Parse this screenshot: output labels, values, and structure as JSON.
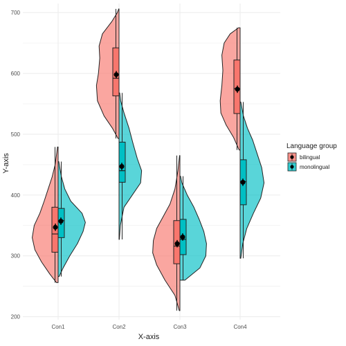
{
  "chart_data": {
    "type": "violin-box",
    "xlabel": "X-axis",
    "ylabel": "Y-axis",
    "ylim": [
      195,
      715
    ],
    "yticks": [
      200,
      300,
      400,
      500,
      600,
      700
    ],
    "categories": [
      "Con1",
      "Con2",
      "Con3",
      "Con4"
    ],
    "grid": true,
    "legend": {
      "title": "Language group",
      "placement": "right",
      "entries": [
        "bilingual",
        "monolingual"
      ]
    },
    "colors": {
      "bilingual": "#F8766D",
      "monolingual": "#00BFC4",
      "outline": "#222222",
      "grid": "#ebebeb"
    },
    "series": [
      {
        "name": "bilingual",
        "groups": [
          {
            "category": "Con1",
            "min": 256,
            "q1": 306,
            "median": 336,
            "q3": 380,
            "max": 479,
            "mean": 347,
            "se": 6,
            "density": [
              [
                256,
                0.05
              ],
              [
                270,
                0.25
              ],
              [
                290,
                0.5
              ],
              [
                310,
                0.7
              ],
              [
                330,
                0.78
              ],
              [
                350,
                0.72
              ],
              [
                370,
                0.55
              ],
              [
                390,
                0.42
              ],
              [
                410,
                0.3
              ],
              [
                430,
                0.18
              ],
              [
                450,
                0.09
              ],
              [
                470,
                0.04
              ],
              [
                479,
                0.02
              ]
            ]
          },
          {
            "category": "Con2",
            "min": 493,
            "q1": 563,
            "median": 592,
            "q3": 642,
            "max": 706,
            "mean": 598,
            "se": 6,
            "density": [
              [
                493,
                0.03
              ],
              [
                510,
                0.2
              ],
              [
                530,
                0.45
              ],
              [
                555,
                0.65
              ],
              [
                580,
                0.68
              ],
              [
                600,
                0.62
              ],
              [
                625,
                0.58
              ],
              [
                645,
                0.6
              ],
              [
                665,
                0.5
              ],
              [
                685,
                0.22
              ],
              [
                700,
                0.05
              ],
              [
                706,
                0.01
              ]
            ]
          },
          {
            "category": "Con3",
            "min": 210,
            "q1": 287,
            "median": 316,
            "q3": 358,
            "max": 465,
            "mean": 320,
            "se": 6,
            "density": [
              [
                210,
                0.02
              ],
              [
                235,
                0.15
              ],
              [
                260,
                0.45
              ],
              [
                285,
                0.7
              ],
              [
                305,
                0.82
              ],
              [
                325,
                0.8
              ],
              [
                345,
                0.7
              ],
              [
                365,
                0.5
              ],
              [
                385,
                0.3
              ],
              [
                410,
                0.15
              ],
              [
                440,
                0.06
              ],
              [
                465,
                0.01
              ]
            ]
          },
          {
            "category": "Con4",
            "min": 474,
            "q1": 534,
            "median": 575,
            "q3": 622,
            "max": 675,
            "mean": 574,
            "se": 6,
            "density": [
              [
                474,
                0.03
              ],
              [
                495,
                0.2
              ],
              [
                515,
                0.42
              ],
              [
                535,
                0.58
              ],
              [
                555,
                0.6
              ],
              [
                580,
                0.55
              ],
              [
                605,
                0.52
              ],
              [
                630,
                0.55
              ],
              [
                650,
                0.48
              ],
              [
                665,
                0.3
              ],
              [
                675,
                0.05
              ]
            ]
          }
        ]
      },
      {
        "name": "monolingual",
        "groups": [
          {
            "category": "Con1",
            "min": 266,
            "q1": 330,
            "median": 358,
            "q3": 378,
            "max": 455,
            "mean": 357,
            "se": 6,
            "density": [
              [
                266,
                0.03
              ],
              [
                280,
                0.15
              ],
              [
                300,
                0.35
              ],
              [
                320,
                0.58
              ],
              [
                340,
                0.75
              ],
              [
                355,
                0.82
              ],
              [
                370,
                0.72
              ],
              [
                390,
                0.38
              ],
              [
                410,
                0.2
              ],
              [
                430,
                0.1
              ],
              [
                445,
                0.05
              ],
              [
                455,
                0.02
              ]
            ]
          },
          {
            "category": "Con2",
            "min": 327,
            "q1": 421,
            "median": 440,
            "q3": 487,
            "max": 568,
            "mean": 447,
            "se": 6,
            "density": [
              [
                327,
                0.01
              ],
              [
                350,
                0.04
              ],
              [
                380,
                0.15
              ],
              [
                400,
                0.4
              ],
              [
                420,
                0.65
              ],
              [
                440,
                0.68
              ],
              [
                460,
                0.55
              ],
              [
                485,
                0.42
              ],
              [
                510,
                0.3
              ],
              [
                535,
                0.15
              ],
              [
                555,
                0.05
              ],
              [
                568,
                0.02
              ]
            ]
          },
          {
            "category": "Con3",
            "min": 260,
            "q1": 302,
            "median": 327,
            "q3": 360,
            "max": 431,
            "mean": 331,
            "se": 6,
            "density": [
              [
                260,
                0.15
              ],
              [
                280,
                0.6
              ],
              [
                300,
                0.78
              ],
              [
                320,
                0.8
              ],
              [
                340,
                0.72
              ],
              [
                360,
                0.58
              ],
              [
                380,
                0.42
              ],
              [
                400,
                0.22
              ],
              [
                420,
                0.06
              ],
              [
                431,
                0.02
              ]
            ]
          },
          {
            "category": "Con4",
            "min": 296,
            "q1": 384,
            "median": 422,
            "q3": 458,
            "max": 553,
            "mean": 421,
            "se": 6,
            "density": [
              [
                296,
                0.02
              ],
              [
                320,
                0.08
              ],
              [
                345,
                0.2
              ],
              [
                370,
                0.4
              ],
              [
                395,
                0.62
              ],
              [
                420,
                0.72
              ],
              [
                445,
                0.65
              ],
              [
                470,
                0.5
              ],
              [
                490,
                0.38
              ],
              [
                510,
                0.22
              ],
              [
                530,
                0.1
              ],
              [
                553,
                0.02
              ]
            ]
          }
        ]
      }
    ]
  }
}
